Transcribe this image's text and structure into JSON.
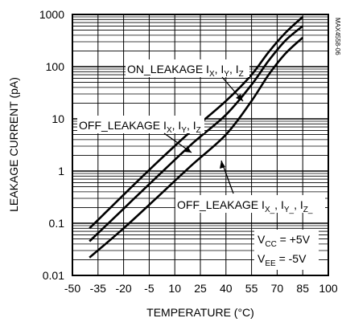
{
  "chart_data": {
    "type": "line",
    "title": "",
    "xlabel": "TEMPERATURE (°C)",
    "ylabel": "LEAKAGE CURRENT (pA)",
    "xlim": [
      -50,
      100
    ],
    "ylim": [
      0.01,
      1000
    ],
    "y_scale": "log",
    "grid": true,
    "x_ticks": [
      -50,
      -35,
      -20,
      -5,
      10,
      25,
      40,
      55,
      70,
      85,
      100
    ],
    "x_tick_labels": [
      "-50",
      "-35",
      "-20",
      "-5",
      "10",
      "25",
      "40",
      "55",
      "70",
      "85",
      "100"
    ],
    "y_ticks": [
      0.01,
      0.1,
      1,
      10,
      100,
      1000
    ],
    "y_tick_labels": [
      "0.01",
      "0.1",
      "1",
      "10",
      "100",
      "1000"
    ],
    "series": [
      {
        "name": "ON_LEAKAGE I_X, I_Y, I_Z",
        "x": [
          -40,
          -20,
          0,
          20,
          40,
          55,
          65,
          75,
          85
        ],
        "y": [
          0.08,
          0.35,
          1.5,
          6,
          22,
          70,
          190,
          450,
          900
        ]
      },
      {
        "name": "OFF_LEAKAGE I_X, I_Y, I_Z",
        "x": [
          -40,
          -20,
          0,
          20,
          40,
          55,
          65,
          75,
          85
        ],
        "y": [
          0.045,
          0.19,
          0.8,
          3.3,
          12,
          45,
          130,
          320,
          600
        ]
      },
      {
        "name": "OFF_LEAKAGE I_X_, I_Y_, I_Z_",
        "x": [
          -40,
          -20,
          0,
          20,
          40,
          55,
          65,
          75,
          85
        ],
        "y": [
          0.022,
          0.08,
          0.32,
          1.3,
          5,
          22,
          70,
          180,
          360
        ]
      }
    ],
    "annotations": {
      "on_leakage": {
        "prefix": "ON_LEAKAGE I",
        "sx": "X",
        "m1": ", I",
        "sy": "Y",
        "m2": ", I",
        "sz": "Z"
      },
      "off_leakage": {
        "prefix": "OFF_LEAKAGE I",
        "sx": "X",
        "m1": ", I",
        "sy": "Y",
        "m2": ", I",
        "sz": "Z"
      },
      "off_leakage_bar": {
        "prefix": "OFF_LEAKAGE I",
        "sx": "X_",
        "m1": ", I",
        "sy": "Y_",
        "m2": ", I",
        "sz": "Z_"
      },
      "vcc": {
        "base": "V",
        "sub": "CC",
        "val": " = +5V"
      },
      "vee": {
        "base": "V",
        "sub": "EE",
        "val": " = -5V"
      },
      "code": "MAX4558-06"
    }
  }
}
